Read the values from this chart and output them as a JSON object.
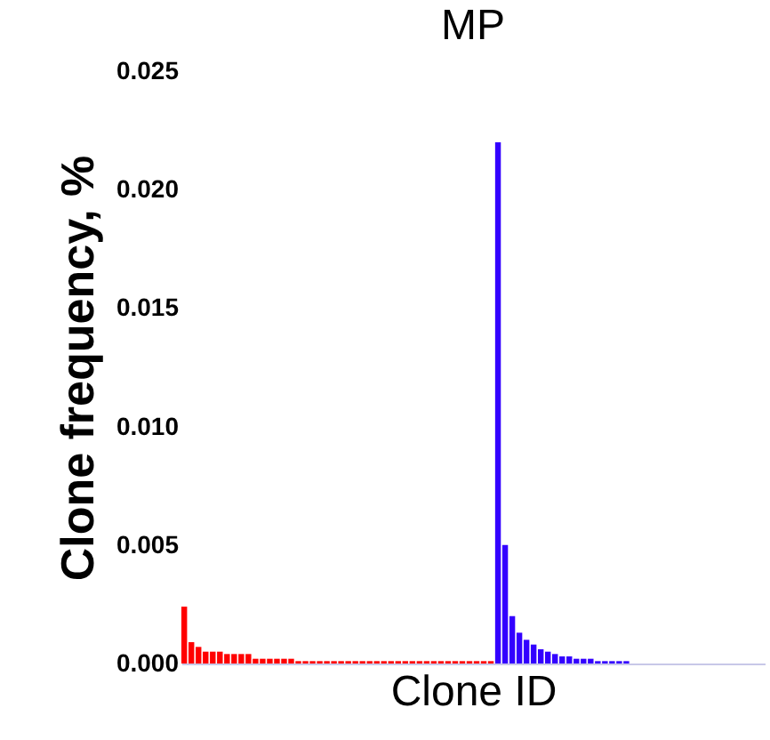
{
  "chart_data": {
    "type": "bar",
    "title": "MP",
    "xlabel": "Clone ID",
    "ylabel": "Clone frequency, %",
    "categories": [
      null,
      null,
      null,
      null,
      null,
      null,
      null,
      null,
      null,
      null,
      null,
      null,
      null,
      null,
      null,
      null,
      null,
      null,
      null,
      null,
      null,
      null,
      null,
      null,
      null,
      null,
      null,
      null,
      null,
      null,
      null,
      null,
      null,
      null,
      null,
      null,
      null,
      null,
      null,
      null,
      null,
      null,
      null,
      null,
      null,
      null,
      null,
      null,
      null,
      null,
      null,
      null,
      null,
      null,
      null,
      null,
      null,
      null,
      null,
      null,
      null,
      null,
      null,
      null,
      null,
      null,
      null,
      null,
      null,
      null,
      null,
      null,
      null,
      null,
      null,
      null,
      null,
      null,
      null,
      null,
      null,
      null
    ],
    "series": [
      {
        "color": "#ff0000",
        "values": [
          0.0024,
          0.0009,
          0.0007,
          0.0005,
          0.0005,
          0.0005,
          0.0004,
          0.0004,
          0.0004,
          0.0004,
          0.0002,
          0.0002,
          0.0002,
          0.0002,
          0.0002,
          0.0002,
          0.0001,
          0.0001,
          0.0001,
          0.0001,
          0.0001,
          0.0001,
          0.0001,
          0.0001,
          0.0001,
          0.0001,
          0.0001,
          0.0001,
          0.0001,
          0.0001,
          0.0001,
          0.0001,
          0.0001,
          0.0001,
          0.0001,
          0.0001,
          0.0001,
          0.0001,
          0.0001,
          0.0001,
          0.0001,
          0.0001,
          0.0001,
          0.0001,
          null,
          null,
          null,
          null,
          null,
          null,
          null,
          null,
          null,
          null,
          null,
          null,
          null,
          null,
          null,
          null,
          null,
          null,
          null,
          null,
          null,
          null,
          null,
          null,
          null,
          null,
          null,
          null,
          null,
          null,
          null,
          null,
          null,
          null,
          null,
          null,
          null,
          null
        ]
      },
      {
        "color": "#3300ff",
        "values": [
          null,
          null,
          null,
          null,
          null,
          null,
          null,
          null,
          null,
          null,
          null,
          null,
          null,
          null,
          null,
          null,
          null,
          null,
          null,
          null,
          null,
          null,
          null,
          null,
          null,
          null,
          null,
          null,
          null,
          null,
          null,
          null,
          null,
          null,
          null,
          null,
          null,
          null,
          null,
          null,
          null,
          null,
          null,
          null,
          0.022,
          0.005,
          0.002,
          0.0013,
          0.001,
          0.0008,
          0.0006,
          0.0005,
          0.0004,
          0.0003,
          0.0003,
          0.0002,
          0.0002,
          0.0002,
          0.0001,
          0.0001,
          0.0001,
          0.0001,
          0.0001,
          null,
          null,
          null,
          null,
          null,
          null,
          null,
          null,
          null,
          null,
          null,
          null,
          null,
          null,
          null,
          null,
          null,
          null,
          null
        ]
      }
    ],
    "ylim": [
      0,
      0.025
    ],
    "yticks": [
      {
        "value": 0,
        "label": "0.000"
      },
      {
        "value": 0.005,
        "label": "0.005"
      },
      {
        "value": 0.01,
        "label": "0.010"
      },
      {
        "value": 0.015,
        "label": "0.015"
      },
      {
        "value": 0.02,
        "label": "0.020"
      },
      {
        "value": 0.025,
        "label": "0.025"
      }
    ],
    "tick_labels": "y",
    "grid": false,
    "legend": false
  }
}
